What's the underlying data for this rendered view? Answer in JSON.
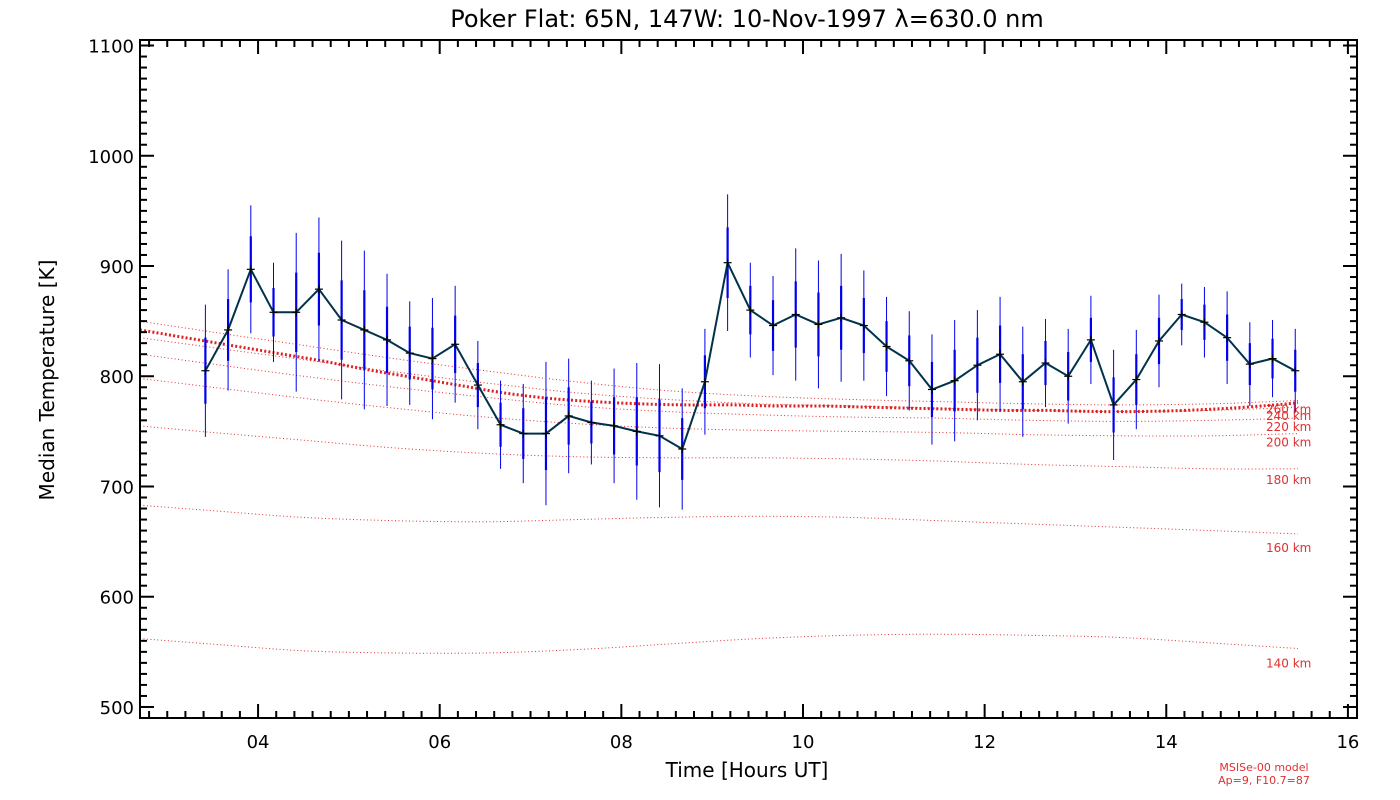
{
  "chart_data": {
    "type": "line",
    "title": "Poker Flat: 65N, 147W: 10-Nov-1997 λ=630.0 nm",
    "xlabel": "Time [Hours UT]",
    "ylabel": "Median Temperature [K]",
    "xlim": [
      2.7,
      16.1
    ],
    "ylim": [
      490,
      1105
    ],
    "x_ticks": [
      4,
      6,
      8,
      10,
      12,
      14,
      16
    ],
    "x_tick_labels": [
      "04",
      "06",
      "08",
      "10",
      "12",
      "14",
      "16"
    ],
    "y_ticks": [
      500,
      600,
      700,
      800,
      900,
      1000,
      1100
    ],
    "y_tick_labels": [
      "500",
      "600",
      "700",
      "800",
      "900",
      "1000",
      "1100"
    ],
    "colors": {
      "series": "#00324b",
      "errorbar": "#0000ee",
      "model": "#e02020",
      "altitude": "#e03030"
    },
    "series": [
      {
        "name": "Median Temperature",
        "x": [
          3.42,
          3.67,
          3.92,
          4.17,
          4.42,
          4.67,
          4.92,
          5.17,
          5.42,
          5.67,
          5.92,
          6.17,
          6.42,
          6.67,
          6.92,
          7.17,
          7.42,
          7.67,
          7.92,
          8.17,
          8.42,
          8.67,
          8.92,
          9.17,
          9.42,
          9.67,
          9.92,
          10.17,
          10.42,
          10.67,
          10.92,
          11.17,
          11.42,
          11.67,
          11.92,
          12.17,
          12.42,
          12.67,
          12.92,
          13.17,
          13.42,
          13.67,
          13.92,
          14.17,
          14.42,
          14.67,
          14.92,
          15.17,
          15.42
        ],
        "y": [
          805,
          842,
          897,
          858,
          858,
          879,
          851,
          842,
          833,
          821,
          816,
          829,
          792,
          756,
          748,
          748,
          764,
          758,
          755,
          750,
          746,
          734,
          795,
          903,
          860,
          846,
          856,
          847,
          853,
          846,
          827,
          814,
          788,
          796,
          810,
          820,
          795,
          812,
          800,
          833,
          774,
          797,
          832,
          856,
          849,
          835,
          811,
          816,
          805
        ],
        "err_outer": [
          60,
          55,
          58,
          45,
          72,
          65,
          72,
          72,
          60,
          47,
          55,
          53,
          40,
          40,
          45,
          65,
          52,
          38,
          52,
          62,
          65,
          55,
          48,
          62,
          43,
          45,
          60,
          58,
          58,
          50,
          45,
          45,
          50,
          55,
          50,
          52,
          50,
          40,
          43,
          40,
          50,
          45,
          42,
          28,
          32,
          42,
          38,
          35,
          38
        ],
        "err_inner": [
          30,
          28,
          30,
          22,
          36,
          33,
          36,
          36,
          30,
          24,
          28,
          26,
          20,
          20,
          23,
          33,
          26,
          19,
          26,
          31,
          33,
          28,
          24,
          32,
          22,
          23,
          30,
          29,
          29,
          25,
          23,
          23,
          25,
          28,
          25,
          26,
          25,
          20,
          22,
          20,
          25,
          23,
          21,
          14,
          16,
          21,
          19,
          18,
          19
        ]
      },
      {
        "name": "MSISe-00 model",
        "x": [
          2.7,
          3.2,
          3.7,
          4.2,
          4.7,
          5.2,
          5.7,
          6.2,
          6.7,
          7.2,
          7.7,
          8.2,
          8.7,
          9.2,
          9.7,
          10.2,
          10.7,
          11.2,
          11.7,
          12.2,
          12.7,
          13.2,
          13.7,
          14.2,
          14.7,
          15.2,
          15.45
        ],
        "y": [
          842,
          835,
          828,
          821,
          814,
          806,
          799,
          792,
          785,
          780,
          777,
          775,
          774,
          774,
          773,
          773,
          772,
          771,
          770,
          769,
          769,
          768,
          768,
          769,
          771,
          774,
          776
        ]
      }
    ],
    "altitude_curves": [
      {
        "label": "140 km",
        "x": [
          2.7,
          3.5,
          4.5,
          5.5,
          6.5,
          7.5,
          8.5,
          9.5,
          10.5,
          11.5,
          12.5,
          13.5,
          14.5,
          15.45
        ],
        "y": [
          562,
          557,
          551,
          549,
          549,
          552,
          557,
          562,
          565,
          566,
          565,
          563,
          558,
          553
        ]
      },
      {
        "label": "160 km",
        "x": [
          2.7,
          3.5,
          4.5,
          5.5,
          6.5,
          7.5,
          8.5,
          9.5,
          10.5,
          11.5,
          12.5,
          13.5,
          14.5,
          15.45
        ],
        "y": [
          683,
          678,
          672,
          669,
          668,
          670,
          672,
          673,
          672,
          669,
          666,
          663,
          660,
          657
        ]
      },
      {
        "label": "180 km",
        "x": [
          2.7,
          3.5,
          4.5,
          5.5,
          6.5,
          7.5,
          8.5,
          9.5,
          10.5,
          11.5,
          12.5,
          13.5,
          14.5,
          15.45
        ],
        "y": [
          755,
          749,
          742,
          735,
          730,
          727,
          726,
          726,
          725,
          723,
          720,
          718,
          716,
          716
        ]
      },
      {
        "label": "200 km",
        "x": [
          2.7,
          3.5,
          4.5,
          5.5,
          6.5,
          7.5,
          8.5,
          9.5,
          10.5,
          11.5,
          12.5,
          13.5,
          14.5,
          15.45
        ],
        "y": [
          798,
          790,
          780,
          771,
          763,
          757,
          753,
          751,
          750,
          749,
          747,
          746,
          746,
          748
        ]
      },
      {
        "label": "220 km",
        "x": [
          2.7,
          3.5,
          4.5,
          5.5,
          6.5,
          7.5,
          8.5,
          9.5,
          10.5,
          11.5,
          12.5,
          13.5,
          14.5,
          15.45
        ],
        "y": [
          820,
          811,
          800,
          790,
          781,
          773,
          768,
          765,
          763,
          762,
          760,
          759,
          760,
          762
        ]
      },
      {
        "label": "240 km",
        "x": [
          2.7,
          3.5,
          4.5,
          5.5,
          6.5,
          7.5,
          8.5,
          9.5,
          10.5,
          11.5,
          12.5,
          13.5,
          14.5,
          15.45
        ],
        "y": [
          835,
          826,
          815,
          804,
          794,
          785,
          779,
          775,
          773,
          771,
          769,
          768,
          769,
          772
        ]
      },
      {
        "label": "260 km",
        "x": [
          2.7,
          3.5,
          4.5,
          5.5,
          6.5,
          7.5,
          8.5,
          9.5,
          10.5,
          11.5,
          12.5,
          13.5,
          14.5,
          15.45
        ],
        "y": [
          850,
          840,
          828,
          816,
          805,
          795,
          787,
          782,
          779,
          777,
          775,
          774,
          775,
          778
        ]
      }
    ],
    "model_note_line1": "MSISe-00 model",
    "model_note_line2": "Ap=9, F10.7=87"
  }
}
